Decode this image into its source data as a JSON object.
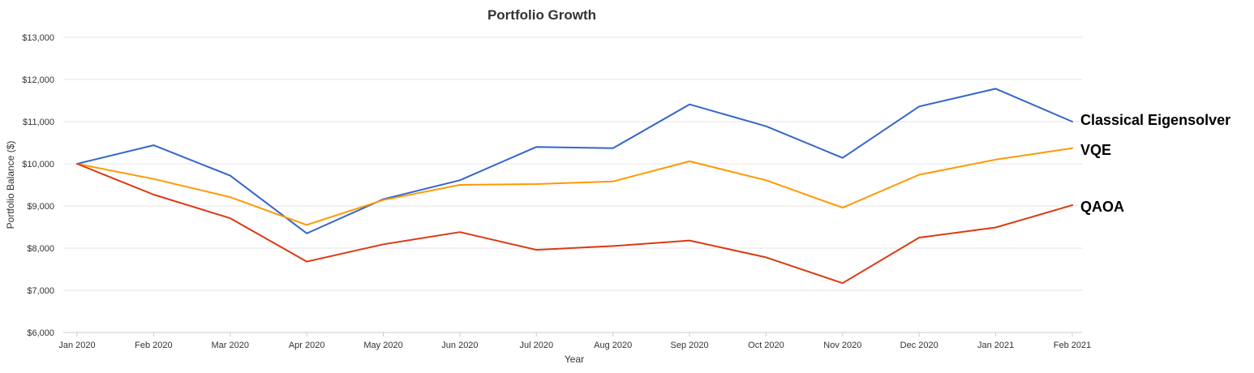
{
  "chart_data": {
    "type": "line",
    "title": "Portfolio Growth",
    "xlabel": "Year",
    "ylabel": "Portfolio Balance ($)",
    "ylim": [
      6000,
      13000
    ],
    "yticks": [
      6000,
      7000,
      8000,
      9000,
      10000,
      11000,
      12000,
      13000
    ],
    "ytick_labels": [
      "$6,000",
      "$7,000",
      "$8,000",
      "$9,000",
      "$10,000",
      "$11,000",
      "$12,000",
      "$13,000"
    ],
    "grid": true,
    "legend": "end-of-line labels",
    "categories": [
      "Jan 2020",
      "Feb 2020",
      "Mar 2020",
      "Apr 2020",
      "May 2020",
      "Jun 2020",
      "Jul 2020",
      "Aug 2020",
      "Sep 2020",
      "Oct 2020",
      "Nov 2020",
      "Dec 2020",
      "Jan 2021",
      "Feb 2021"
    ],
    "series": [
      {
        "name": "Classical Eigensolver",
        "color": "#3366cc",
        "values": [
          10000,
          10440,
          9720,
          8350,
          9160,
          9610,
          10400,
          10370,
          11410,
          10890,
          10140,
          11360,
          11780,
          11000
        ]
      },
      {
        "name": "VQE",
        "color": "#ff9900",
        "values": [
          10000,
          9640,
          9210,
          8550,
          9140,
          9500,
          9520,
          9580,
          10060,
          9610,
          8960,
          9740,
          10100,
          10370
        ]
      },
      {
        "name": "QAOA",
        "color": "#dc3912",
        "values": [
          10000,
          9270,
          8710,
          7680,
          8090,
          8380,
          7960,
          8050,
          8180,
          7780,
          7170,
          8250,
          8490,
          9020
        ]
      }
    ]
  }
}
